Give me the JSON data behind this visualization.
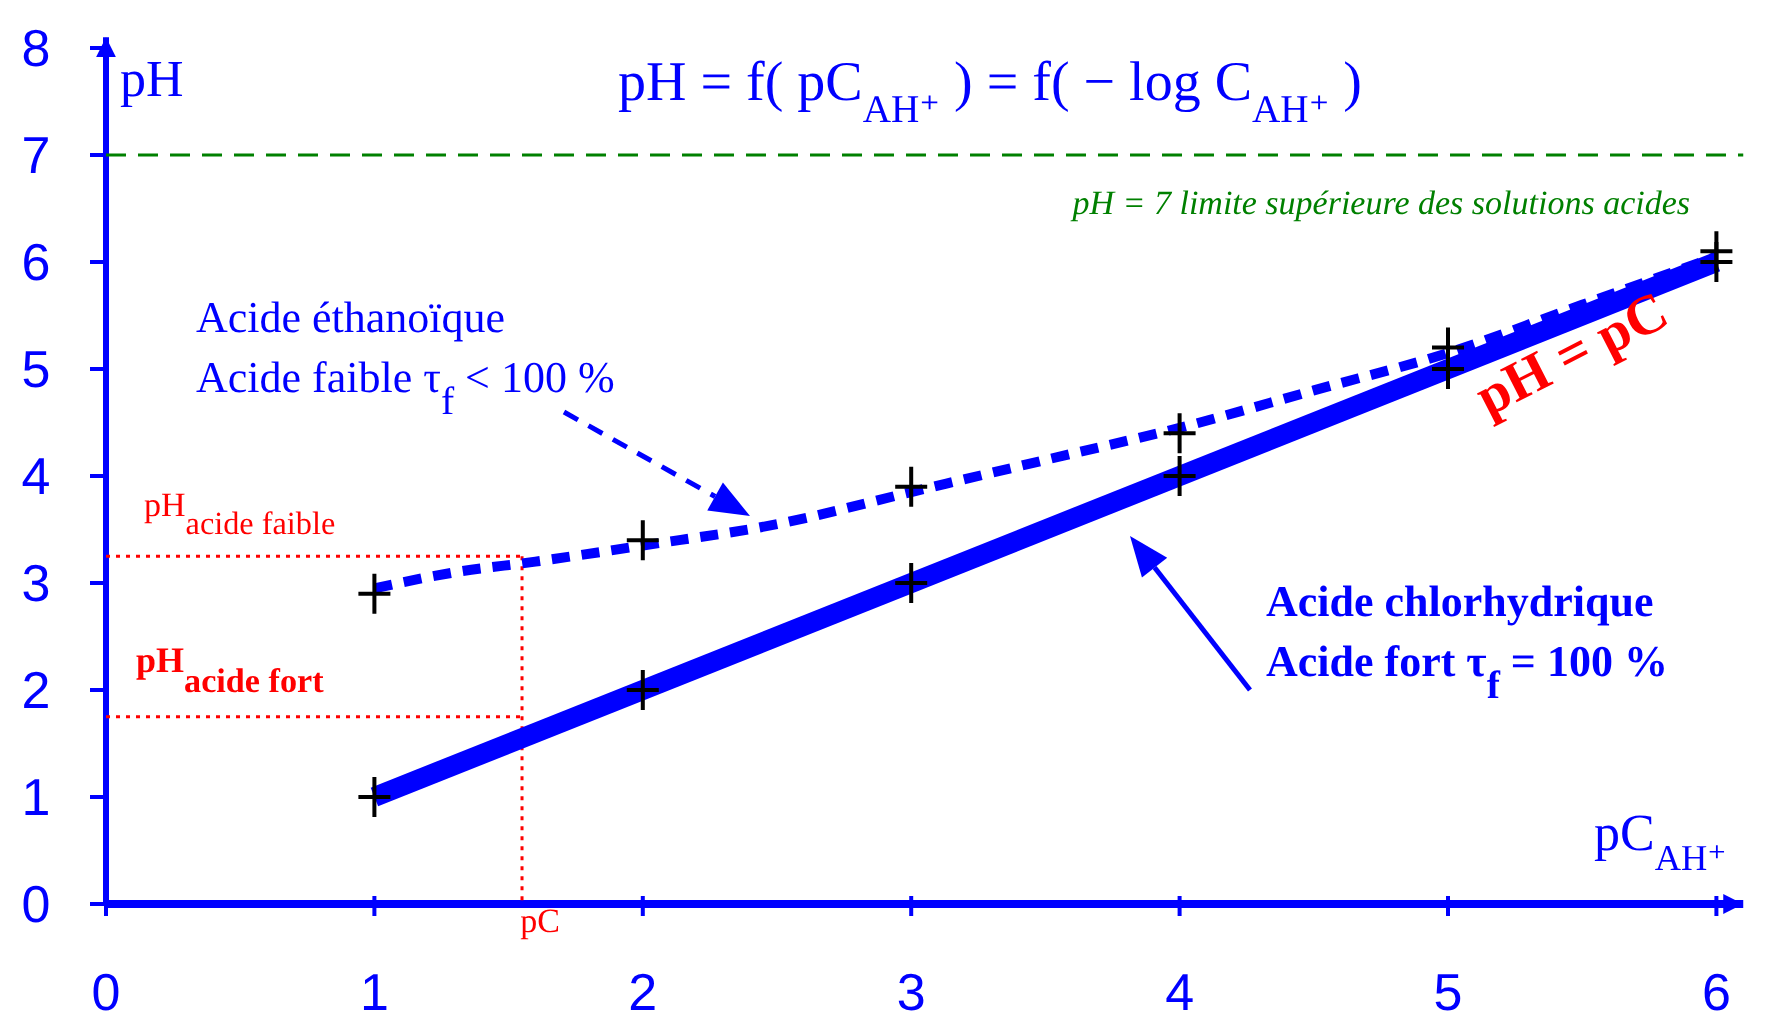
{
  "chart_data": {
    "type": "line",
    "title": "pH = f( pC$_{AH⁺}$ ) = f( − log C$_{AH⁺}$ )",
    "xlabel": "pC$_{AH⁺}$",
    "ylabel": "pH",
    "xlim": [
      0,
      6.1
    ],
    "ylim": [
      0,
      8.1
    ],
    "xticks": [
      0,
      1,
      2,
      3,
      4,
      5,
      6
    ],
    "yticks": [
      0,
      1,
      2,
      3,
      4,
      5,
      6,
      7,
      8
    ],
    "grid": false,
    "series": [
      {
        "type": "line",
        "color": "#0000ff",
        "line_style": "solid",
        "marker": "none",
        "x": [
          1,
          6
        ],
        "values": [
          1,
          6
        ]
      },
      {
        "type": "line",
        "color": "#0000ff",
        "line_style": "dashed",
        "marker": "none",
        "x": [
          1,
          1.3,
          1.6,
          2,
          2.5,
          3,
          3.5,
          4,
          4.5,
          5,
          5.5,
          6
        ],
        "values": [
          2.95,
          3.1,
          3.2,
          3.35,
          3.55,
          3.85,
          4.15,
          4.45,
          4.8,
          5.15,
          5.6,
          6.05
        ]
      },
      {
        "type": "scatter",
        "color": "#000000",
        "marker": "cross",
        "x": [
          1,
          2,
          3,
          4,
          5,
          6
        ],
        "values": [
          2.9,
          3.4,
          3.9,
          4.4,
          5.2,
          6.1
        ]
      },
      {
        "type": "scatter",
        "color": "#000000",
        "marker": "cross",
        "x": [
          1,
          2,
          3,
          4,
          5,
          6
        ],
        "values": [
          1,
          2,
          3,
          4,
          5,
          6
        ]
      }
    ],
    "ref_lines": [
      {
        "axis": "y",
        "value": 7,
        "label": "pH = 7 limite supérieure des solutions acides",
        "color": "#008000",
        "line_style": "dashed"
      },
      {
        "axis": "y",
        "value": 3.25,
        "label": "pH$_{acide faible}$",
        "color": "#ff0000",
        "line_style": "dotted"
      },
      {
        "axis": "y",
        "value": 1.75,
        "label": "pH$_{acide fort}$",
        "color": "#ff0000",
        "line_style": "dotted"
      },
      {
        "axis": "x",
        "value": 1.55,
        "label": "pC",
        "color": "#ff0000",
        "line_style": "dotted"
      }
    ],
    "annotations": [
      "Acide éthanoïque",
      "Acide faible τ$_{f}$ < 100 %",
      "Acide chlorhydrique",
      "Acide fort τ$_{f}$ = 100 %",
      "pH = pC"
    ]
  }
}
